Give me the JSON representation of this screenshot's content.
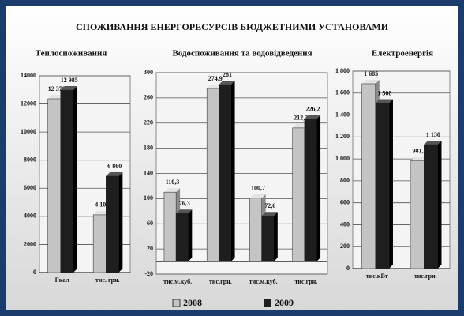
{
  "title": "СПОЖИВАННЯ ЕНЕРГОРЕСУРСІВ БЮДЖЕТНИМИ УСТАНОВАМИ",
  "chart_data": [
    {
      "type": "bar",
      "title": "Теплоспоживання",
      "categories": [
        "Гкал",
        "тис. грн."
      ],
      "series": [
        {
          "name": "2008",
          "color": "#c4c4c4",
          "values": [
            12370,
            4109
          ],
          "value_labels": [
            "12 370",
            "4 109"
          ]
        },
        {
          "name": "2009",
          "color": "#1e1e1e",
          "values": [
            12985,
            6860
          ],
          "value_labels": [
            "12 985",
            "6 860"
          ]
        }
      ],
      "ylim": [
        0,
        14000
      ],
      "yticks": [
        0,
        2000,
        4000,
        6000,
        8000,
        10000,
        12000,
        14000
      ],
      "grid": true
    },
    {
      "type": "bar",
      "title": "Водоспоживання та водовідведення",
      "categories": [
        "тис.м.куб.",
        "тис.грн.",
        "тис.м.куб.",
        "тис.грн."
      ],
      "series": [
        {
          "color": "#c4c4c4",
          "values": [
            110.3,
            274.9,
            100.7,
            212.3
          ],
          "value_labels": [
            "110,3",
            "274,9",
            "100,7",
            "212,3"
          ]
        },
        {
          "color": "#1e1e1e",
          "values": [
            76.3,
            281,
            72.6,
            226.2
          ],
          "value_labels": [
            "76,3",
            "281",
            "72,6",
            "226,2"
          ]
        }
      ],
      "ylim": [
        -20,
        300
      ],
      "yticks": [
        -20,
        20,
        60,
        100,
        140,
        180,
        220,
        260,
        300
      ],
      "grid": true
    },
    {
      "type": "bar",
      "title": "Електроенергія",
      "categories": [
        "тис.кВт",
        "тис.грн."
      ],
      "series": [
        {
          "color": "#c4c4c4",
          "values": [
            1685,
            981.3
          ],
          "value_labels": [
            "1 685",
            "981,3"
          ]
        },
        {
          "color": "#1e1e1e",
          "values": [
            1508,
            1130
          ],
          "value_labels": [
            "1 508",
            "1 130"
          ]
        }
      ],
      "ylim": [
        0,
        1800
      ],
      "yticks": [
        0,
        200,
        400,
        600,
        800,
        {
          "value": 1000,
          "label": "1 000"
        },
        {
          "value": 1200,
          "label": "1 200"
        },
        {
          "value": 1400,
          "label": "1 400"
        },
        {
          "value": 1600,
          "label": "1 600"
        },
        {
          "value": 1800,
          "label": "1 800"
        }
      ],
      "grid": true
    }
  ]
}
